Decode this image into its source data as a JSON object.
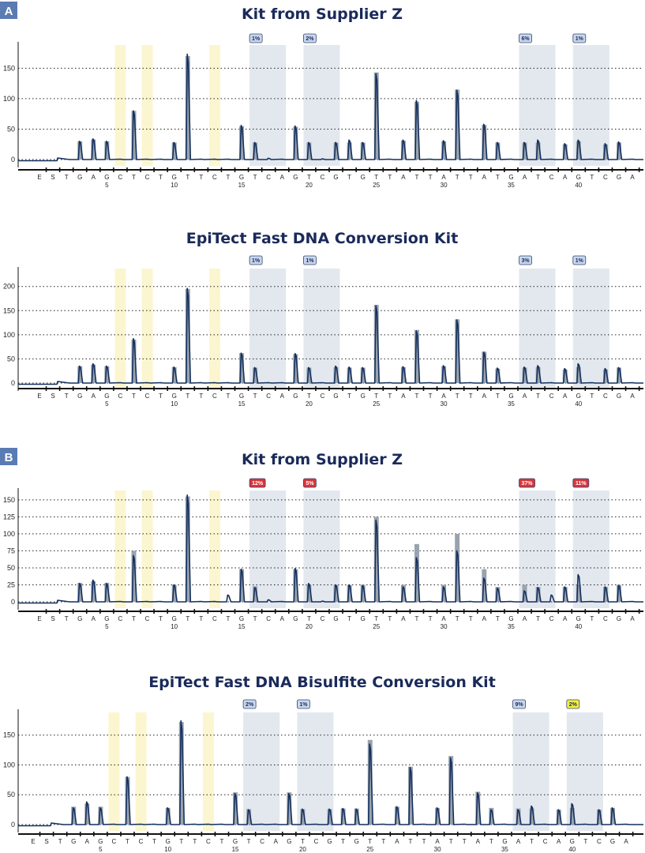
{
  "panel_labels": [
    "A",
    "B"
  ],
  "colors": {
    "trace": "#14305f",
    "expected_bar": "#9aa3ad",
    "yellow_band": "#fbf6cf",
    "blue_band": "#e3e8ef",
    "badge_blue_fill": "#c9d7ee",
    "badge_red_fill": "#d8363d",
    "badge_yellow_fill": "#f5ee3c",
    "title": "#1a2a5a"
  },
  "chart_data": [
    {
      "type": "line",
      "title": "Kit from Supplier Z",
      "sequence": [
        "E",
        "S",
        "T",
        "G",
        "A",
        "G",
        "C",
        "T",
        "C",
        "T",
        "G",
        "T",
        "T",
        "C",
        "T",
        "G",
        "T",
        "C",
        "A",
        "G",
        "T",
        "C",
        "G",
        "T",
        "G",
        "T",
        "T",
        "A",
        "T",
        "T",
        "A",
        "T",
        "T",
        "A",
        "T",
        "G",
        "A",
        "T",
        "C",
        "A",
        "G",
        "T",
        "C",
        "G",
        "A"
      ],
      "position_labels": [
        5,
        10,
        15,
        20,
        25,
        30,
        35,
        40
      ],
      "yticks": [
        0,
        50,
        100,
        150
      ],
      "ylim": [
        -5,
        185
      ],
      "yellow_bands": [
        7,
        9,
        14
      ],
      "blue_bands": [
        [
          17,
          18
        ],
        [
          21,
          22
        ],
        [
          37,
          38
        ],
        [
          41,
          42
        ]
      ],
      "badges": [
        {
          "text": "1%",
          "color": "blue"
        },
        {
          "text": "2%",
          "color": "blue"
        },
        {
          "text": "6%",
          "color": "blue"
        },
        {
          "text": "1%",
          "color": "blue"
        }
      ],
      "peaks": [
        {
          "x": 4,
          "expected": 30,
          "observed": 30
        },
        {
          "x": 5,
          "expected": 33,
          "observed": 34
        },
        {
          "x": 6,
          "expected": 30,
          "observed": 30
        },
        {
          "x": 8,
          "expected": 80,
          "observed": 80
        },
        {
          "x": 11,
          "expected": 28,
          "observed": 28
        },
        {
          "x": 12,
          "expected": 170,
          "observed": 173
        },
        {
          "x": 16,
          "expected": 55,
          "observed": 56
        },
        {
          "x": 17,
          "expected": 28,
          "observed": 28
        },
        {
          "x": 18,
          "expected": 0,
          "observed": 2
        },
        {
          "x": 20,
          "expected": 54,
          "observed": 55
        },
        {
          "x": 21,
          "expected": 28,
          "observed": 28
        },
        {
          "x": 22,
          "expected": 0,
          "observed": 1
        },
        {
          "x": 23,
          "expected": 28,
          "observed": 28
        },
        {
          "x": 24,
          "expected": 28,
          "observed": 32
        },
        {
          "x": 25,
          "expected": 28,
          "observed": 28
        },
        {
          "x": 26,
          "expected": 143,
          "observed": 141
        },
        {
          "x": 28,
          "expected": 31,
          "observed": 32
        },
        {
          "x": 29,
          "expected": 95,
          "observed": 97
        },
        {
          "x": 31,
          "expected": 30,
          "observed": 31
        },
        {
          "x": 32,
          "expected": 115,
          "observed": 114
        },
        {
          "x": 34,
          "expected": 57,
          "observed": 58
        },
        {
          "x": 35,
          "expected": 28,
          "observed": 28
        },
        {
          "x": 37,
          "expected": 28,
          "observed": 28
        },
        {
          "x": 38,
          "expected": 28,
          "observed": 32
        },
        {
          "x": 40,
          "expected": 25,
          "observed": 26
        },
        {
          "x": 41,
          "expected": 30,
          "observed": 32
        },
        {
          "x": 43,
          "expected": 25,
          "observed": 26
        },
        {
          "x": 44,
          "expected": 28,
          "observed": 29
        }
      ]
    },
    {
      "type": "line",
      "title": "EpiTect Fast DNA Conversion Kit",
      "sequence": [
        "E",
        "S",
        "T",
        "G",
        "A",
        "G",
        "C",
        "T",
        "C",
        "T",
        "G",
        "T",
        "T",
        "C",
        "T",
        "G",
        "T",
        "C",
        "A",
        "G",
        "T",
        "C",
        "G",
        "T",
        "G",
        "T",
        "T",
        "A",
        "T",
        "T",
        "A",
        "T",
        "T",
        "A",
        "T",
        "G",
        "A",
        "T",
        "C",
        "A",
        "G",
        "T",
        "C",
        "G",
        "A"
      ],
      "position_labels": [
        5,
        10,
        15,
        20,
        25,
        30,
        35,
        40
      ],
      "yticks": [
        0,
        50,
        100,
        150,
        200
      ],
      "ylim": [
        -5,
        230
      ],
      "yellow_bands": [
        7,
        9,
        14
      ],
      "blue_bands": [
        [
          17,
          18
        ],
        [
          21,
          22
        ],
        [
          37,
          38
        ],
        [
          41,
          42
        ]
      ],
      "badges": [
        {
          "text": "1%",
          "color": "blue"
        },
        {
          "text": "1%",
          "color": "blue"
        },
        {
          "text": "3%",
          "color": "blue"
        },
        {
          "text": "1%",
          "color": "blue"
        }
      ],
      "peaks": [
        {
          "x": 4,
          "expected": 35,
          "observed": 35
        },
        {
          "x": 5,
          "expected": 38,
          "observed": 40
        },
        {
          "x": 6,
          "expected": 35,
          "observed": 35
        },
        {
          "x": 8,
          "expected": 90,
          "observed": 92
        },
        {
          "x": 11,
          "expected": 33,
          "observed": 33
        },
        {
          "x": 12,
          "expected": 195,
          "observed": 196
        },
        {
          "x": 16,
          "expected": 62,
          "observed": 62
        },
        {
          "x": 17,
          "expected": 32,
          "observed": 32
        },
        {
          "x": 20,
          "expected": 60,
          "observed": 61
        },
        {
          "x": 21,
          "expected": 32,
          "observed": 32
        },
        {
          "x": 23,
          "expected": 33,
          "observed": 35
        },
        {
          "x": 24,
          "expected": 32,
          "observed": 33
        },
        {
          "x": 25,
          "expected": 32,
          "observed": 32
        },
        {
          "x": 26,
          "expected": 162,
          "observed": 160
        },
        {
          "x": 28,
          "expected": 33,
          "observed": 34
        },
        {
          "x": 29,
          "expected": 110,
          "observed": 108
        },
        {
          "x": 31,
          "expected": 35,
          "observed": 36
        },
        {
          "x": 32,
          "expected": 132,
          "observed": 131
        },
        {
          "x": 34,
          "expected": 65,
          "observed": 64
        },
        {
          "x": 35,
          "expected": 30,
          "observed": 31
        },
        {
          "x": 37,
          "expected": 32,
          "observed": 33
        },
        {
          "x": 38,
          "expected": 33,
          "observed": 36
        },
        {
          "x": 40,
          "expected": 28,
          "observed": 30
        },
        {
          "x": 41,
          "expected": 33,
          "observed": 40
        },
        {
          "x": 43,
          "expected": 28,
          "observed": 30
        },
        {
          "x": 44,
          "expected": 32,
          "observed": 32
        }
      ]
    },
    {
      "type": "line",
      "title": "Kit from Supplier Z",
      "sequence": [
        "E",
        "S",
        "T",
        "G",
        "A",
        "G",
        "C",
        "T",
        "C",
        "T",
        "G",
        "T",
        "T",
        "C",
        "T",
        "G",
        "T",
        "C",
        "A",
        "G",
        "T",
        "C",
        "G",
        "T",
        "G",
        "T",
        "T",
        "A",
        "T",
        "T",
        "A",
        "T",
        "T",
        "A",
        "T",
        "G",
        "A",
        "T",
        "C",
        "A",
        "G",
        "T",
        "C",
        "G",
        "A"
      ],
      "position_labels": [
        5,
        10,
        15,
        20,
        25,
        30,
        35,
        40
      ],
      "yticks": [
        0,
        25,
        50,
        75,
        100,
        125,
        150
      ],
      "ylim": [
        -5,
        160
      ],
      "yellow_bands": [
        7,
        9,
        14
      ],
      "blue_bands": [
        [
          17,
          18
        ],
        [
          21,
          22
        ],
        [
          37,
          38
        ],
        [
          41,
          42
        ]
      ],
      "badges": [
        {
          "text": "12%",
          "color": "red"
        },
        {
          "text": "5%",
          "color": "red"
        },
        {
          "text": "37%",
          "color": "red"
        },
        {
          "text": "11%",
          "color": "red"
        }
      ],
      "peaks": [
        {
          "x": 4,
          "expected": 28,
          "observed": 27
        },
        {
          "x": 5,
          "expected": 30,
          "observed": 32
        },
        {
          "x": 6,
          "expected": 28,
          "observed": 27
        },
        {
          "x": 8,
          "expected": 75,
          "observed": 68
        },
        {
          "x": 11,
          "expected": 25,
          "observed": 25
        },
        {
          "x": 12,
          "expected": 155,
          "observed": 157
        },
        {
          "x": 15,
          "expected": 0,
          "observed": 10
        },
        {
          "x": 16,
          "expected": 48,
          "observed": 48
        },
        {
          "x": 17,
          "expected": 23,
          "observed": 21
        },
        {
          "x": 18,
          "expected": 0,
          "observed": 3
        },
        {
          "x": 20,
          "expected": 48,
          "observed": 49
        },
        {
          "x": 21,
          "expected": 25,
          "observed": 27
        },
        {
          "x": 22,
          "expected": 0,
          "observed": 1
        },
        {
          "x": 23,
          "expected": 25,
          "observed": 25
        },
        {
          "x": 24,
          "expected": 25,
          "observed": 25
        },
        {
          "x": 25,
          "expected": 25,
          "observed": 24
        },
        {
          "x": 26,
          "expected": 125,
          "observed": 120
        },
        {
          "x": 28,
          "expected": 25,
          "observed": 22
        },
        {
          "x": 29,
          "expected": 85,
          "observed": 65
        },
        {
          "x": 31,
          "expected": 25,
          "observed": 22
        },
        {
          "x": 32,
          "expected": 100,
          "observed": 75
        },
        {
          "x": 34,
          "expected": 48,
          "observed": 35
        },
        {
          "x": 35,
          "expected": 22,
          "observed": 20
        },
        {
          "x": 37,
          "expected": 25,
          "observed": 16
        },
        {
          "x": 38,
          "expected": 22,
          "observed": 21
        },
        {
          "x": 39,
          "expected": 0,
          "observed": 10
        },
        {
          "x": 40,
          "expected": 22,
          "observed": 22
        },
        {
          "x": 41,
          "expected": 25,
          "observed": 40
        },
        {
          "x": 43,
          "expected": 22,
          "observed": 22
        },
        {
          "x": 44,
          "expected": 25,
          "observed": 24
        }
      ]
    },
    {
      "type": "line",
      "title": "EpiTect Fast DNA Bisulfite Conversion Kit",
      "sequence": [
        "E",
        "S",
        "T",
        "G",
        "A",
        "G",
        "C",
        "T",
        "C",
        "T",
        "G",
        "T",
        "T",
        "C",
        "T",
        "G",
        "T",
        "C",
        "A",
        "G",
        "T",
        "C",
        "G",
        "T",
        "G",
        "T",
        "T",
        "A",
        "T",
        "T",
        "A",
        "T",
        "T",
        "A",
        "T",
        "G",
        "A",
        "T",
        "C",
        "A",
        "G",
        "T",
        "C",
        "G",
        "A"
      ],
      "position_labels": [
        5,
        10,
        15,
        20,
        25,
        30,
        35,
        40
      ],
      "yticks": [
        0,
        50,
        100,
        150
      ],
      "ylim": [
        -5,
        185
      ],
      "yellow_bands": [
        7,
        9,
        14
      ],
      "blue_bands": [
        [
          17,
          18
        ],
        [
          21,
          22
        ],
        [
          37,
          38
        ],
        [
          41,
          42
        ]
      ],
      "badges": [
        {
          "text": "2%",
          "color": "blue"
        },
        {
          "text": "1%",
          "color": "blue"
        },
        {
          "text": "9%",
          "color": "blue"
        },
        {
          "text": "2%",
          "color": "yellow"
        }
      ],
      "peaks": [
        {
          "x": 4,
          "expected": 30,
          "observed": 28
        },
        {
          "x": 5,
          "expected": 35,
          "observed": 38
        },
        {
          "x": 6,
          "expected": 30,
          "observed": 28
        },
        {
          "x": 8,
          "expected": 80,
          "observed": 80
        },
        {
          "x": 11,
          "expected": 28,
          "observed": 28
        },
        {
          "x": 12,
          "expected": 172,
          "observed": 174
        },
        {
          "x": 16,
          "expected": 54,
          "observed": 52
        },
        {
          "x": 17,
          "expected": 26,
          "observed": 25
        },
        {
          "x": 20,
          "expected": 54,
          "observed": 52
        },
        {
          "x": 21,
          "expected": 26,
          "observed": 26
        },
        {
          "x": 23,
          "expected": 26,
          "observed": 26
        },
        {
          "x": 24,
          "expected": 27,
          "observed": 27
        },
        {
          "x": 25,
          "expected": 27,
          "observed": 26
        },
        {
          "x": 26,
          "expected": 142,
          "observed": 135
        },
        {
          "x": 28,
          "expected": 30,
          "observed": 30
        },
        {
          "x": 29,
          "expected": 97,
          "observed": 96
        },
        {
          "x": 31,
          "expected": 28,
          "observed": 28
        },
        {
          "x": 32,
          "expected": 115,
          "observed": 112
        },
        {
          "x": 34,
          "expected": 55,
          "observed": 53
        },
        {
          "x": 35,
          "expected": 28,
          "observed": 25
        },
        {
          "x": 37,
          "expected": 27,
          "observed": 25
        },
        {
          "x": 38,
          "expected": 27,
          "observed": 31
        },
        {
          "x": 40,
          "expected": 25,
          "observed": 25
        },
        {
          "x": 41,
          "expected": 28,
          "observed": 35
        },
        {
          "x": 43,
          "expected": 25,
          "observed": 25
        },
        {
          "x": 44,
          "expected": 28,
          "observed": 28
        }
      ]
    }
  ]
}
